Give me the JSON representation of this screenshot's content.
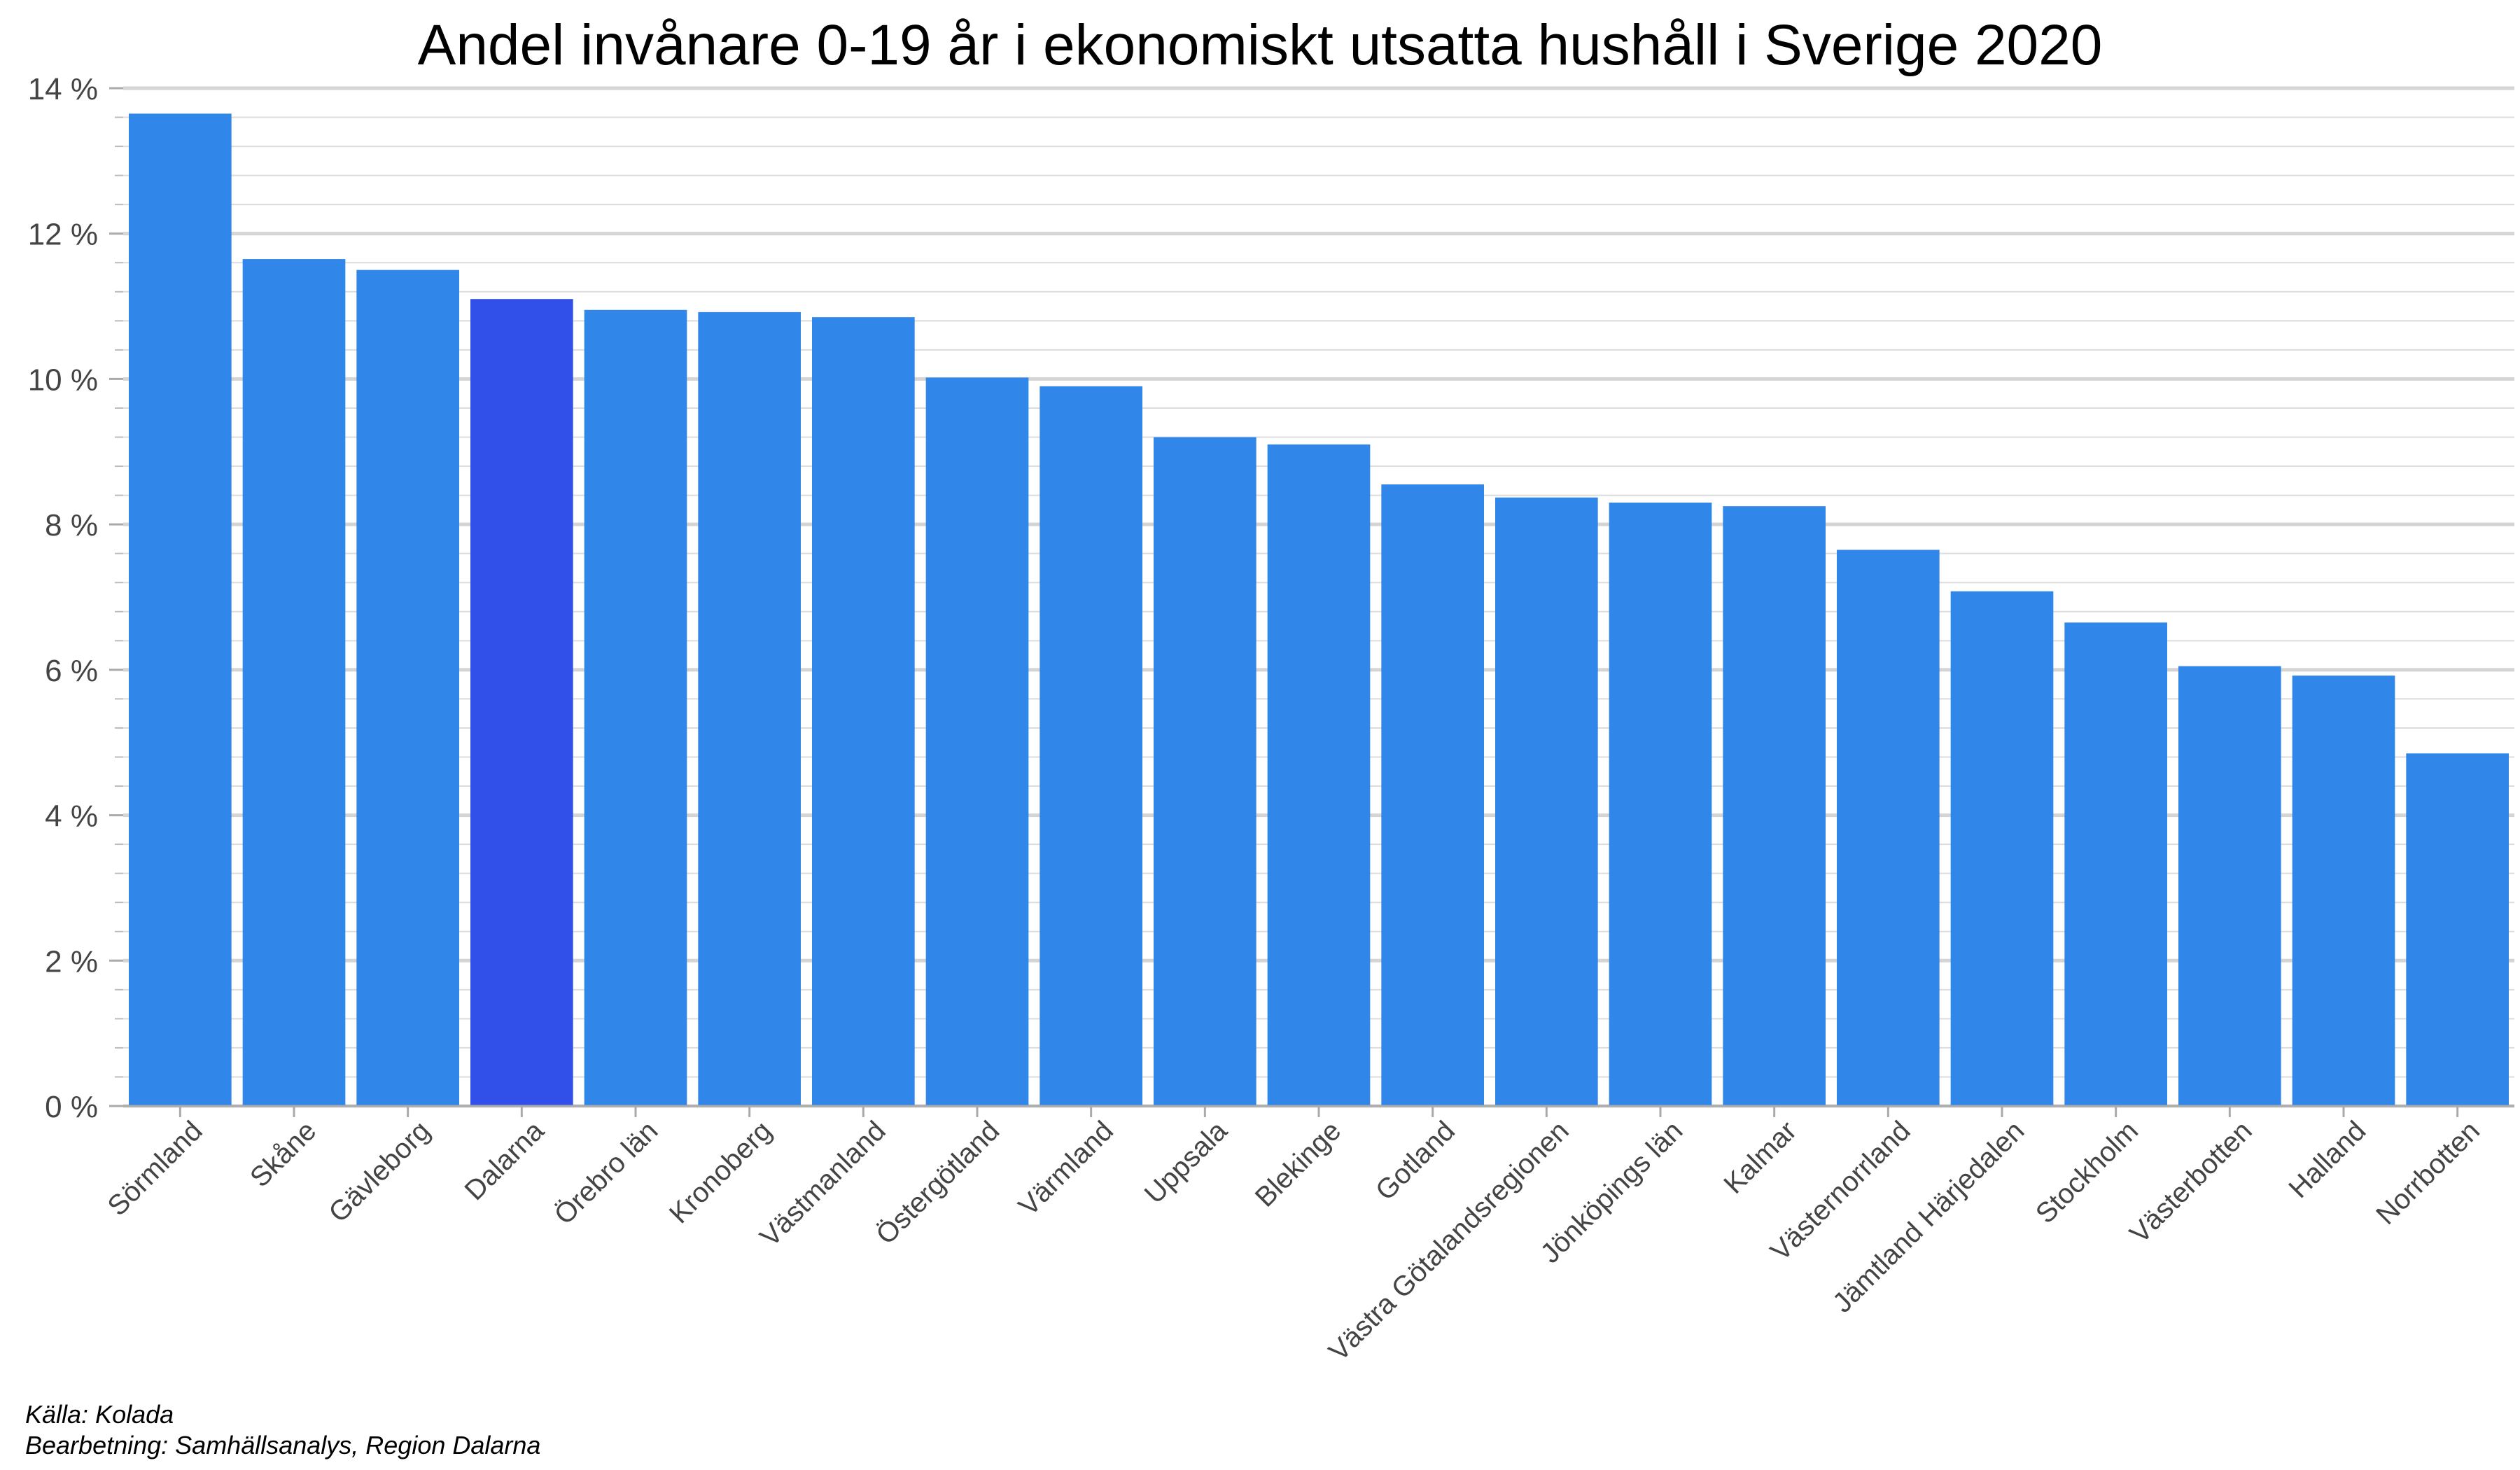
{
  "chart_data": {
    "type": "bar",
    "title": "Andel invånare 0-19 år i ekonomiskt utsatta hushåll i Sverige 2020",
    "xlabel": "",
    "ylabel": "",
    "categories": [
      "Sörmland",
      "Skåne",
      "Gävleborg",
      "Dalarna",
      "Örebro län",
      "Kronoberg",
      "Västmanland",
      "Östergötland",
      "Värmland",
      "Uppsala",
      "Blekinge",
      "Gotland",
      "Västra Götalandsregionen",
      "Jönköpings län",
      "Kalmar",
      "Västernorrland",
      "Jämtland Härjedalen",
      "Stockholm",
      "Västerbotten",
      "Halland",
      "Norrbotten"
    ],
    "values": [
      13.65,
      11.65,
      11.5,
      11.1,
      10.95,
      10.92,
      10.85,
      10.02,
      9.9,
      9.2,
      9.1,
      8.55,
      8.37,
      8.3,
      8.25,
      7.65,
      7.08,
      6.65,
      6.05,
      5.92,
      4.85
    ],
    "highlight": "Dalarna",
    "ylim": [
      0,
      14
    ],
    "yticks": [
      0,
      2,
      4,
      6,
      8,
      10,
      12,
      14
    ],
    "ytick_labels": [
      "0 %",
      "2 %",
      "4 %",
      "6 %",
      "8 %",
      "10 %",
      "12 %",
      "14 %"
    ],
    "grid": true,
    "colors": {
      "bar": "#3186E9",
      "highlight": "#3150EA",
      "grid_major": "#D4D4D4",
      "grid_minor": "#DCDCDC"
    }
  },
  "captions": {
    "source": "Källa: Kolada",
    "processing": "Bearbetning: Samhällsanalys, Region Dalarna"
  }
}
